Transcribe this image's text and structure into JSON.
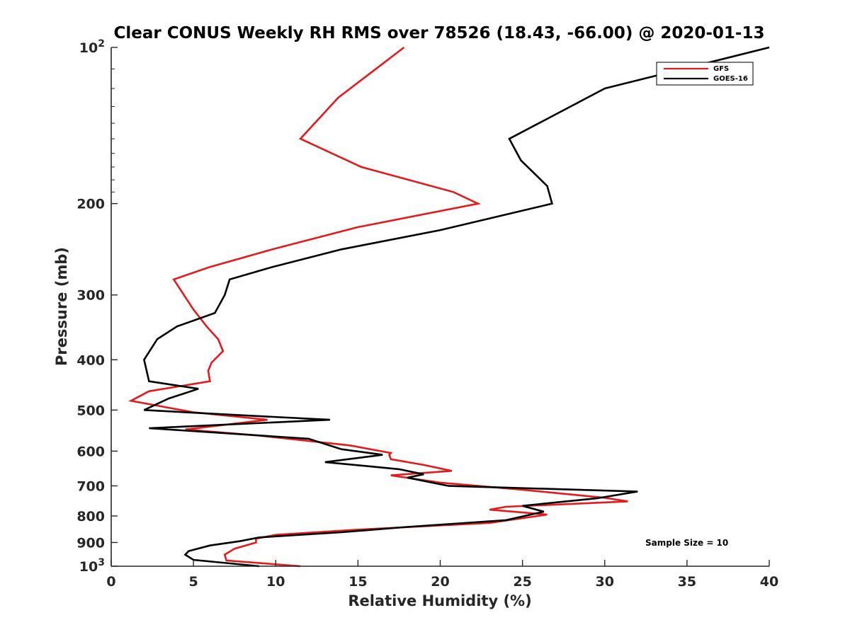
{
  "chart_data": {
    "type": "line",
    "title": "Clear CONUS Weekly RH RMS over 78526 (18.43, -66.00) @ 2020-01-13",
    "xlabel": "Relative Humidity (%)",
    "ylabel": "Pressure (mb)",
    "xlim": [
      0,
      40
    ],
    "ylim": [
      100,
      1000
    ],
    "y_scale": "log",
    "y_reversed": true,
    "x_ticks": [
      "0",
      "5",
      "10",
      "15",
      "20",
      "25",
      "30",
      "35",
      "40"
    ],
    "y_ticks": [
      {
        "value": 100,
        "base": "10",
        "exp": "2"
      },
      {
        "value": 200,
        "label": "200"
      },
      {
        "value": 300,
        "label": "300"
      },
      {
        "value": 400,
        "label": "400"
      },
      {
        "value": 500,
        "label": "500"
      },
      {
        "value": 600,
        "label": "600"
      },
      {
        "value": 700,
        "label": "700"
      },
      {
        "value": 800,
        "label": "800"
      },
      {
        "value": 900,
        "label": "900"
      },
      {
        "value": 1000,
        "base": "10",
        "exp": "3"
      }
    ],
    "legend_position": "top-right",
    "annotation": "Sample Size = 10",
    "series": [
      {
        "name": "GFS",
        "color": "#e41a1c",
        "points": [
          [
            17.8,
            100
          ],
          [
            13.8,
            125
          ],
          [
            11.5,
            150
          ],
          [
            15.2,
            170
          ],
          [
            20.8,
            190
          ],
          [
            22.3,
            200
          ],
          [
            15.0,
            222
          ],
          [
            9.8,
            245
          ],
          [
            6.0,
            265
          ],
          [
            3.8,
            280
          ],
          [
            5.0,
            320
          ],
          [
            5.8,
            345
          ],
          [
            6.5,
            365
          ],
          [
            6.8,
            385
          ],
          [
            6.1,
            405
          ],
          [
            5.9,
            420
          ],
          [
            6.0,
            440
          ],
          [
            2.3,
            460
          ],
          [
            1.2,
            480
          ],
          [
            5.0,
            505
          ],
          [
            9.5,
            522
          ],
          [
            4.5,
            545
          ],
          [
            9.0,
            560
          ],
          [
            14.5,
            585
          ],
          [
            17.0,
            605
          ],
          [
            16.9,
            610
          ],
          [
            17.0,
            622
          ],
          [
            19.0,
            638
          ],
          [
            20.7,
            655
          ],
          [
            17.0,
            668
          ],
          [
            20.0,
            690
          ],
          [
            25.0,
            712
          ],
          [
            30.0,
            738
          ],
          [
            31.4,
            750
          ],
          [
            24.0,
            768
          ],
          [
            23.0,
            778
          ],
          [
            26.5,
            795
          ],
          [
            23.0,
            825
          ],
          [
            15.0,
            850
          ],
          [
            10.0,
            870
          ],
          [
            8.8,
            885
          ],
          [
            8.8,
            900
          ],
          [
            7.5,
            925
          ],
          [
            6.9,
            950
          ],
          [
            7.0,
            975
          ],
          [
            11.5,
            1000
          ]
        ]
      },
      {
        "name": "GOES-16",
        "color": "#000000",
        "points": [
          [
            40.0,
            100
          ],
          [
            30.0,
            120
          ],
          [
            24.2,
            150
          ],
          [
            24.9,
            165
          ],
          [
            26.5,
            185
          ],
          [
            26.8,
            200
          ],
          [
            20.0,
            225
          ],
          [
            14.0,
            245
          ],
          [
            9.8,
            265
          ],
          [
            7.2,
            280
          ],
          [
            6.9,
            300
          ],
          [
            6.3,
            325
          ],
          [
            4.0,
            345
          ],
          [
            2.8,
            365
          ],
          [
            2.0,
            400
          ],
          [
            2.3,
            440
          ],
          [
            5.3,
            455
          ],
          [
            3.5,
            475
          ],
          [
            2.0,
            500
          ],
          [
            7.0,
            510
          ],
          [
            13.3,
            522
          ],
          [
            2.3,
            542
          ],
          [
            12.0,
            568
          ],
          [
            14.0,
            595
          ],
          [
            16.5,
            610
          ],
          [
            13.0,
            630
          ],
          [
            17.5,
            650
          ],
          [
            19.0,
            665
          ],
          [
            18.0,
            675
          ],
          [
            20.5,
            700
          ],
          [
            32.0,
            718
          ],
          [
            29.5,
            740
          ],
          [
            25.0,
            765
          ],
          [
            26.3,
            785
          ],
          [
            24.0,
            815
          ],
          [
            18.0,
            840
          ],
          [
            14.0,
            860
          ],
          [
            9.0,
            880
          ],
          [
            7.8,
            895
          ],
          [
            6.0,
            912
          ],
          [
            4.7,
            935
          ],
          [
            4.5,
            950
          ],
          [
            5.0,
            972
          ],
          [
            9.0,
            1000
          ]
        ]
      }
    ]
  }
}
